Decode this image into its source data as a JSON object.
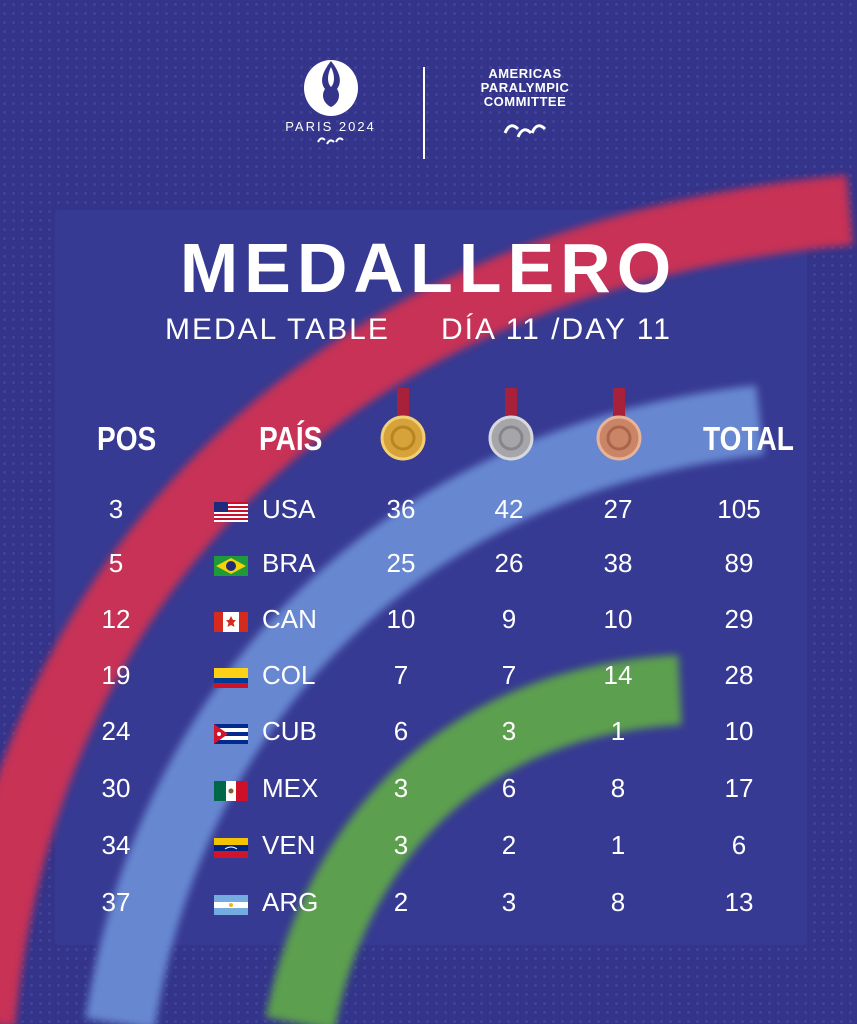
{
  "header": {
    "paris_text": "PARIS 2024",
    "apc_line1": "AMERICAS",
    "apc_line2": "PARALYMPIC",
    "apc_line3": "COMMITTEE"
  },
  "title": "MEDALLERO",
  "subtitle_left": "MEDAL TABLE",
  "subtitle_right": "DÍA 11 /DAY 11",
  "columns": {
    "pos": "POS",
    "country": "PAÍS",
    "total": "TOTAL"
  },
  "colors": {
    "background": "#33348a",
    "red_band": "#cf3152",
    "blue_band": "#6a8cd5",
    "green_band": "#5ea54c",
    "gold": "#d6a23a",
    "silver": "#a6a6aa",
    "bronze": "#c98566"
  },
  "rows": [
    {
      "pos": "3",
      "code": "USA",
      "gold": "36",
      "silver": "42",
      "bronze": "27",
      "total": "105"
    },
    {
      "pos": "5",
      "code": "BRA",
      "gold": "25",
      "silver": "26",
      "bronze": "38",
      "total": "89"
    },
    {
      "pos": "12",
      "code": "CAN",
      "gold": "10",
      "silver": "9",
      "bronze": "10",
      "total": "29"
    },
    {
      "pos": "19",
      "code": "COL",
      "gold": "7",
      "silver": "7",
      "bronze": "14",
      "total": "28"
    },
    {
      "pos": "24",
      "code": "CUB",
      "gold": "6",
      "silver": "3",
      "bronze": "1",
      "total": "10"
    },
    {
      "pos": "30",
      "code": "MEX",
      "gold": "3",
      "silver": "6",
      "bronze": "8",
      "total": "17"
    },
    {
      "pos": "34",
      "code": "VEN",
      "gold": "3",
      "silver": "2",
      "bronze": "1",
      "total": "6"
    },
    {
      "pos": "37",
      "code": "ARG",
      "gold": "2",
      "silver": "3",
      "bronze": "8",
      "total": "13"
    }
  ]
}
